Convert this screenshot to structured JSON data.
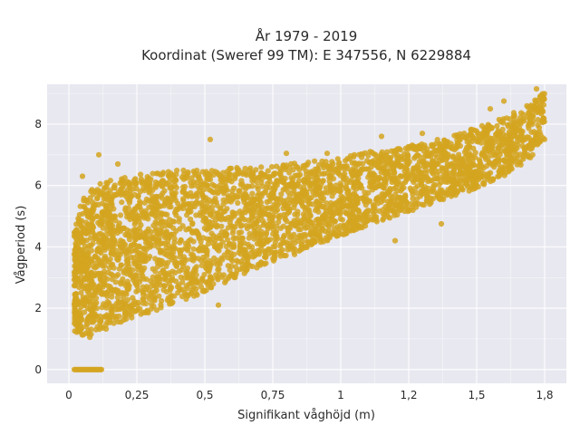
{
  "chart_data": {
    "type": "scatter",
    "title_lines": [
      "År 1979 - 2019",
      "Koordinat (Sweref 99 TM): E 347556, N 6229884"
    ],
    "xlabel": "Signifikant våghöjd (m)",
    "ylabel": "Vågperiod (s)",
    "xlim": [
      -0.08,
      1.83
    ],
    "ylim": [
      -0.45,
      9.3
    ],
    "x_ticks": [
      0,
      0.25,
      0.5,
      0.75,
      1,
      1.25,
      1.5,
      1.75
    ],
    "x_tick_labels": [
      "0",
      "0,25",
      "0,5",
      "0,75",
      "1",
      "1,2",
      "1,5",
      "1,8"
    ],
    "y_ticks": [
      0,
      2,
      4,
      6,
      8
    ],
    "y_tick_labels": [
      "0",
      "2",
      "4",
      "6",
      "8"
    ],
    "grid": true,
    "colors": {
      "marker": "#d4a520",
      "plot_bg": "#e8e8f0",
      "grid": "#ffffff"
    },
    "envelope": {
      "x": [
        0.02,
        0.05,
        0.1,
        0.15,
        0.2,
        0.3,
        0.4,
        0.5,
        0.6,
        0.7,
        0.8,
        0.9,
        1.0,
        1.1,
        1.2,
        1.3,
        1.4,
        1.5,
        1.6,
        1.7,
        1.75
      ],
      "y_lower": [
        1.2,
        1.05,
        1.05,
        1.3,
        1.55,
        1.85,
        2.2,
        2.5,
        2.95,
        3.35,
        3.7,
        4.05,
        4.35,
        4.7,
        5.0,
        5.3,
        5.6,
        5.9,
        6.3,
        6.9,
        7.5
      ],
      "y_upper": [
        4.6,
        5.6,
        6.0,
        6.2,
        6.3,
        6.4,
        6.5,
        6.5,
        6.6,
        6.6,
        6.7,
        6.8,
        6.9,
        7.1,
        7.2,
        7.4,
        7.6,
        7.9,
        8.2,
        8.7,
        9.05
      ]
    },
    "zero_cluster": {
      "x": [
        0.02,
        0.12
      ],
      "y": 0
    },
    "outliers": [
      {
        "x": 0.05,
        "y": 6.3
      },
      {
        "x": 0.11,
        "y": 7.0
      },
      {
        "x": 0.18,
        "y": 6.7
      },
      {
        "x": 0.52,
        "y": 7.5
      },
      {
        "x": 1.15,
        "y": 7.6
      },
      {
        "x": 1.72,
        "y": 9.15
      },
      {
        "x": 1.37,
        "y": 4.75
      },
      {
        "x": 1.2,
        "y": 4.2
      },
      {
        "x": 0.55,
        "y": 2.1
      },
      {
        "x": 0.83,
        "y": 3.75
      },
      {
        "x": 0.6,
        "y": 3.1
      },
      {
        "x": 0.4,
        "y": 2.7
      },
      {
        "x": 0.8,
        "y": 7.05
      },
      {
        "x": 0.95,
        "y": 7.05
      },
      {
        "x": 1.05,
        "y": 7.0
      },
      {
        "x": 1.55,
        "y": 8.5
      },
      {
        "x": 1.6,
        "y": 8.75
      },
      {
        "x": 1.3,
        "y": 7.7
      }
    ]
  }
}
